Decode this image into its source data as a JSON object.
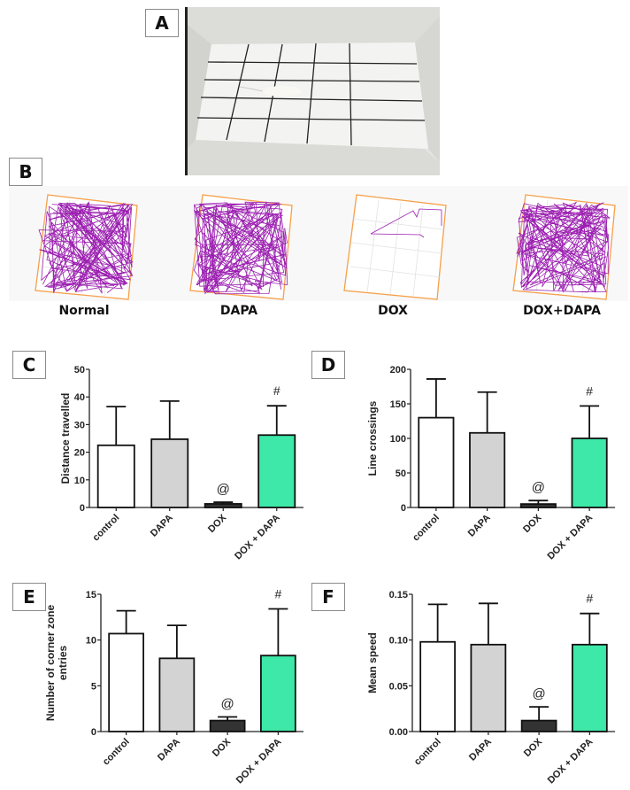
{
  "panels": {
    "A": "A",
    "B": "B",
    "C": "C",
    "D": "D",
    "E": "E",
    "F": "F"
  },
  "track_groups": [
    "Normal",
    "DAPA",
    "DOX",
    "DOX+DAPA"
  ],
  "colors": {
    "control": "#ffffff",
    "DAPA": "#d3d3d3",
    "DOX": "#333333",
    "DOX + DAPA": "#3de8a8",
    "track": "#9b1fb0",
    "arena": "#f5a04a"
  },
  "chart_data": [
    {
      "type": "bar",
      "panel": "C",
      "categories": [
        "control",
        "DAPA",
        "DOX",
        "DOX + DAPA"
      ],
      "values": [
        22.5,
        24.7,
        1.3,
        26.2
      ],
      "errors": [
        14.0,
        13.8,
        0.6,
        10.6
      ],
      "annotations": [
        "",
        "",
        "@",
        "#"
      ],
      "ylabel": "Distance travelled",
      "ylabel_lines": [
        "Distance travelled"
      ],
      "ylim": [
        0,
        50
      ],
      "yticks": [
        0,
        10,
        20,
        30,
        40,
        50
      ],
      "ytick_labels": [
        "0",
        "10",
        "20",
        "30",
        "40",
        "50"
      ]
    },
    {
      "type": "bar",
      "panel": "D",
      "categories": [
        "control",
        "DAPA",
        "DOX",
        "DOX + DAPA"
      ],
      "values": [
        130,
        108,
        5,
        100
      ],
      "errors": [
        56,
        59,
        5,
        47
      ],
      "annotations": [
        "",
        "",
        "@",
        "#"
      ],
      "ylabel": "Line crossings",
      "ylabel_lines": [
        "Line crossings"
      ],
      "ylim": [
        0,
        200
      ],
      "yticks": [
        0,
        50,
        100,
        150,
        200
      ],
      "ytick_labels": [
        "0",
        "50",
        "100",
        "150",
        "200"
      ]
    },
    {
      "type": "bar",
      "panel": "E",
      "categories": [
        "control",
        "DAPA",
        "DOX",
        "DOX + DAPA"
      ],
      "values": [
        10.7,
        8.0,
        1.2,
        8.3
      ],
      "errors": [
        2.5,
        3.6,
        0.4,
        5.1
      ],
      "annotations": [
        "",
        "",
        "@",
        "#"
      ],
      "ylabel": "Number of corner zone entries",
      "ylabel_lines": [
        "Number of corner zone",
        "entries"
      ],
      "ylim": [
        0,
        15
      ],
      "yticks": [
        0,
        5,
        10,
        15
      ],
      "ytick_labels": [
        "0",
        "5",
        "10",
        "15"
      ]
    },
    {
      "type": "bar",
      "panel": "F",
      "categories": [
        "control",
        "DAPA",
        "DOX",
        "DOX + DAPA"
      ],
      "values": [
        0.098,
        0.095,
        0.012,
        0.095
      ],
      "errors": [
        0.041,
        0.045,
        0.015,
        0.034
      ],
      "annotations": [
        "",
        "",
        "@",
        "#"
      ],
      "ylabel": "Mean speed",
      "ylabel_lines": [
        "Mean speed"
      ],
      "ylim": [
        0,
        0.15
      ],
      "yticks": [
        0,
        0.05,
        0.1,
        0.15
      ],
      "ytick_labels": [
        "0.00",
        "0.05",
        "0.10",
        "0.15"
      ]
    }
  ]
}
